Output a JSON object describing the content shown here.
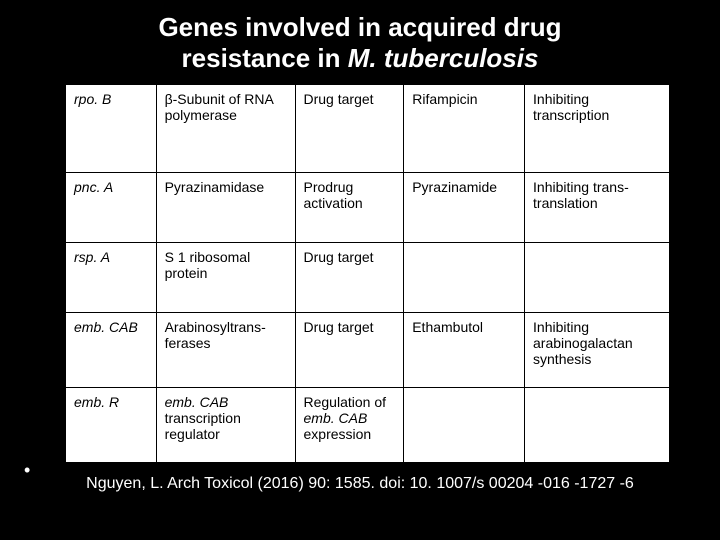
{
  "title": {
    "line1": "Genes involved in acquired drug",
    "line2_prefix": "resistance in ",
    "species": "M. tuberculosis"
  },
  "table": {
    "rows": [
      {
        "gene": "rpo. B",
        "product": "β-Subunit of RNA polymerase",
        "role": "Drug target",
        "drug": "Rifampicin",
        "mechanism": "Inhibiting transcription"
      },
      {
        "gene": "pnc. A",
        "product": "Pyrazinamidase",
        "role": "Prodrug activation",
        "drug": "Pyrazinamide",
        "mechanism": "Inhibiting trans-translation"
      },
      {
        "gene": "rsp. A",
        "product": "S 1 ribosomal protein",
        "role": "Drug target",
        "drug": "",
        "mechanism": ""
      },
      {
        "gene": "emb. CAB",
        "product": "Arabinosyltrans-ferases",
        "role": "Drug target",
        "drug": "Ethambutol",
        "mechanism": "Inhibiting arabinogalactan synthesis"
      },
      {
        "gene": "emb. R",
        "product_italic": "emb. CAB",
        "product_rest": " transcription regulator",
        "role_prefix": "Regulation of ",
        "role_italic": "emb. CAB",
        "role_suffix": " expression",
        "drug": "",
        "mechanism": ""
      }
    ]
  },
  "bullet": "•",
  "citation": "Nguyen, L. Arch Toxicol (2016) 90: 1585. doi: 10. 1007/s 00204 -016 -1727 -6",
  "colors": {
    "page_bg": "#000000",
    "table_bg": "#ffffff",
    "border": "#000000",
    "title_text": "#ffffff",
    "cell_text": "#000000",
    "citation_text": "#ffffff"
  }
}
